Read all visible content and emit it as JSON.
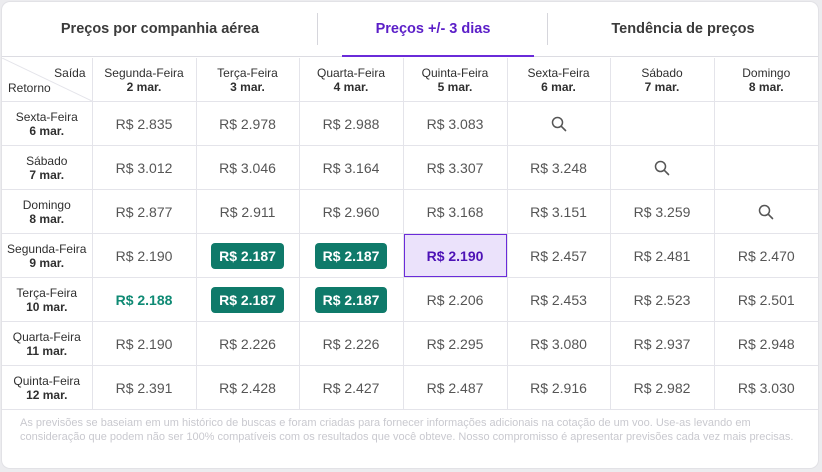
{
  "tabs": [
    {
      "label": "Preços por companhia aérea",
      "active": false
    },
    {
      "label": "Preços +/- 3 dias",
      "active": true
    },
    {
      "label": "Tendência de preços",
      "active": false
    }
  ],
  "corner": {
    "outbound_label": "Saída",
    "return_label": "Retorno"
  },
  "columns": [
    {
      "day": "Segunda-Feira",
      "date": "2 mar."
    },
    {
      "day": "Terça-Feira",
      "date": "3 mar."
    },
    {
      "day": "Quarta-Feira",
      "date": "4 mar."
    },
    {
      "day": "Quinta-Feira",
      "date": "5 mar."
    },
    {
      "day": "Sexta-Feira",
      "date": "6 mar."
    },
    {
      "day": "Sábado",
      "date": "7 mar."
    },
    {
      "day": "Domingo",
      "date": "8 mar."
    }
  ],
  "rows": [
    {
      "day": "Sexta-Feira",
      "date": "6 mar.",
      "cells": [
        {
          "type": "price",
          "value": "R$ 2.835"
        },
        {
          "type": "price",
          "value": "R$ 2.978"
        },
        {
          "type": "price",
          "value": "R$ 2.988"
        },
        {
          "type": "price",
          "value": "R$ 3.083"
        },
        {
          "type": "search",
          "icon": "search-icon"
        },
        {
          "type": "empty"
        },
        {
          "type": "empty"
        }
      ]
    },
    {
      "day": "Sábado",
      "date": "7 mar.",
      "cells": [
        {
          "type": "price",
          "value": "R$ 3.012"
        },
        {
          "type": "price",
          "value": "R$ 3.046"
        },
        {
          "type": "price",
          "value": "R$ 3.164"
        },
        {
          "type": "price",
          "value": "R$ 3.307"
        },
        {
          "type": "price",
          "value": "R$ 3.248"
        },
        {
          "type": "search",
          "icon": "search-icon"
        },
        {
          "type": "empty"
        }
      ]
    },
    {
      "day": "Domingo",
      "date": "8 mar.",
      "cells": [
        {
          "type": "price",
          "value": "R$ 2.877"
        },
        {
          "type": "price",
          "value": "R$ 2.911"
        },
        {
          "type": "price",
          "value": "R$ 2.960"
        },
        {
          "type": "price",
          "value": "R$ 3.168"
        },
        {
          "type": "price",
          "value": "R$ 3.151"
        },
        {
          "type": "price",
          "value": "R$ 3.259"
        },
        {
          "type": "search",
          "icon": "search-icon"
        }
      ]
    },
    {
      "day": "Segunda-Feira",
      "date": "9 mar.",
      "cells": [
        {
          "type": "price",
          "value": "R$ 2.190"
        },
        {
          "type": "cheapest",
          "value": "R$ 2.187"
        },
        {
          "type": "cheapest",
          "value": "R$ 2.187"
        },
        {
          "type": "selected",
          "value": "R$ 2.190"
        },
        {
          "type": "price",
          "value": "R$ 2.457"
        },
        {
          "type": "price",
          "value": "R$ 2.481"
        },
        {
          "type": "price",
          "value": "R$ 2.470"
        }
      ]
    },
    {
      "day": "Terça-Feira",
      "date": "10 mar.",
      "cells": [
        {
          "type": "cheap",
          "value": "R$ 2.188"
        },
        {
          "type": "cheapest",
          "value": "R$ 2.187"
        },
        {
          "type": "cheapest",
          "value": "R$ 2.187"
        },
        {
          "type": "price",
          "value": "R$ 2.206"
        },
        {
          "type": "price",
          "value": "R$ 2.453"
        },
        {
          "type": "price",
          "value": "R$ 2.523"
        },
        {
          "type": "price",
          "value": "R$ 2.501"
        }
      ]
    },
    {
      "day": "Quarta-Feira",
      "date": "11 mar.",
      "cells": [
        {
          "type": "price",
          "value": "R$ 2.190"
        },
        {
          "type": "price",
          "value": "R$ 2.226"
        },
        {
          "type": "price",
          "value": "R$ 2.226"
        },
        {
          "type": "price",
          "value": "R$ 2.295"
        },
        {
          "type": "price",
          "value": "R$ 3.080"
        },
        {
          "type": "price",
          "value": "R$ 2.937"
        },
        {
          "type": "price",
          "value": "R$ 2.948"
        }
      ]
    },
    {
      "day": "Quinta-Feira",
      "date": "12 mar.",
      "cells": [
        {
          "type": "price",
          "value": "R$ 2.391"
        },
        {
          "type": "price",
          "value": "R$ 2.428"
        },
        {
          "type": "price",
          "value": "R$ 2.427"
        },
        {
          "type": "price",
          "value": "R$ 2.487"
        },
        {
          "type": "price",
          "value": "R$ 2.916"
        },
        {
          "type": "price",
          "value": "R$ 2.982"
        },
        {
          "type": "price",
          "value": "R$ 3.030"
        }
      ]
    }
  ],
  "footnote": "As previsões se baseiam em um histórico de buscas e foram criadas para fornecer informações adicionais na cotação de um voo. Use-as levando em consideração que podem não ser 100% compatíveis com os resultados que você obteve. Nosso compromisso é apresentar previsões cada vez mais precisas.",
  "colors": {
    "accent": "#6a2bd9",
    "cheapest_bg": "#0f7a6a",
    "cheap_text": "#0f8a74",
    "selected_bg": "#ebe2fb"
  }
}
